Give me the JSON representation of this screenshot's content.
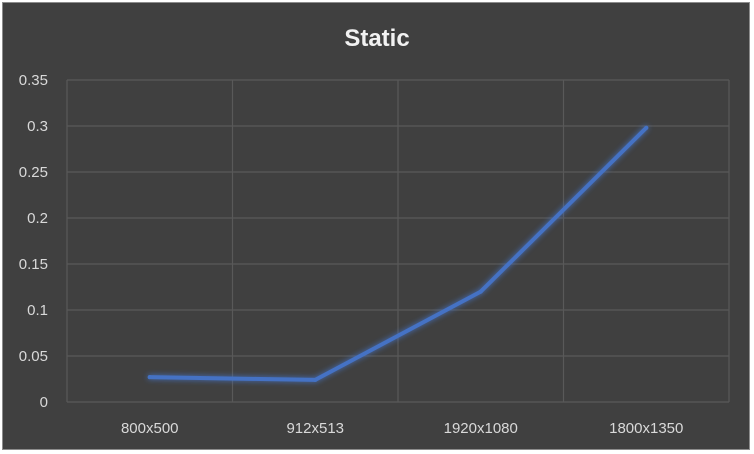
{
  "chart_data": {
    "type": "line",
    "title": "Static",
    "xlabel": "",
    "ylabel": "",
    "categories": [
      "800x500",
      "912x513",
      "1920x1080",
      "1800x1350"
    ],
    "series": [
      {
        "values": [
          0.027,
          0.024,
          0.12,
          0.298
        ]
      }
    ],
    "ylim": [
      0,
      0.35
    ],
    "yticks": [
      "0",
      "0.05",
      "0.1",
      "0.15",
      "0.2",
      "0.25",
      "0.3",
      "0.35"
    ],
    "grid": true,
    "legend": "none",
    "colors": {
      "background": "#404040",
      "line": "#4472c4",
      "grid": "#595959",
      "text": "#d9d9d9"
    }
  }
}
